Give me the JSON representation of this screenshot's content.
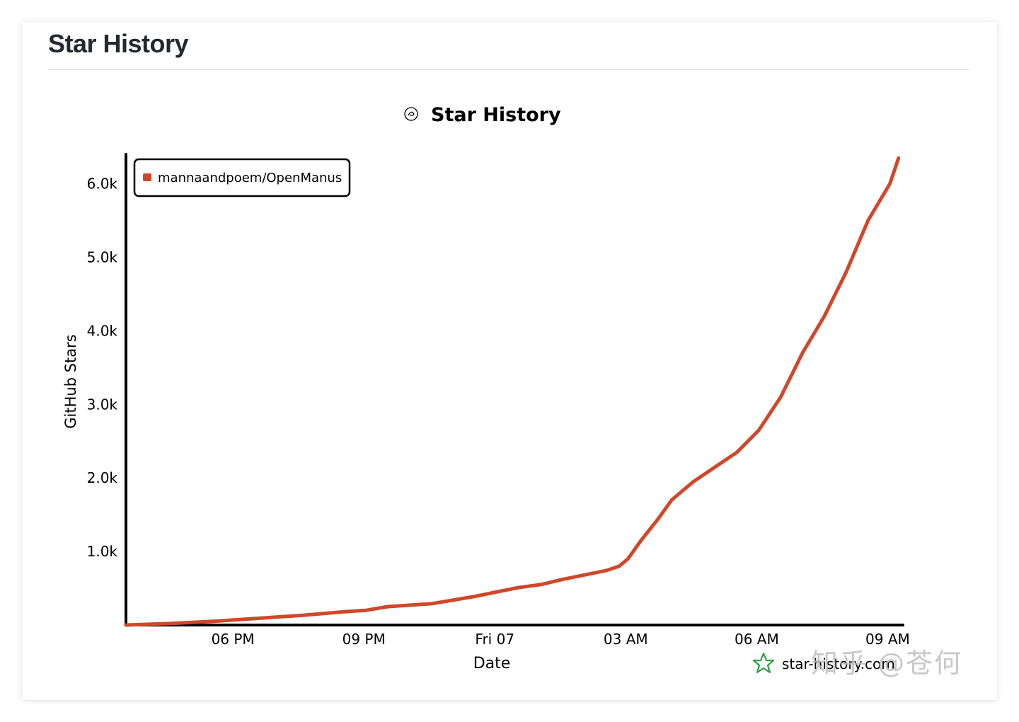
{
  "card": {
    "title": "Star History"
  },
  "colors": {
    "series": "#d0472a",
    "axis": "#000000",
    "brand_star": "#2ea043",
    "card_title": "#24292f"
  },
  "branding": {
    "icon": "star-history-logo-icon",
    "text": "star-history.com"
  },
  "watermark": {
    "text": "知乎 @苍何"
  },
  "chart_data": {
    "type": "line",
    "title": "Star History",
    "xlabel": "Date",
    "ylabel": "GitHub Stars",
    "x_unit": "hours since 06 Mar 3:34 PM (first tick 06 PM)",
    "xlim": [
      0,
      17.8
    ],
    "ylim": [
      0,
      6400
    ],
    "yticks": [
      {
        "value": 1000,
        "label": "1.0k"
      },
      {
        "value": 2000,
        "label": "2.0k"
      },
      {
        "value": 3000,
        "label": "3.0k"
      },
      {
        "value": 4000,
        "label": "4.0k"
      },
      {
        "value": 5000,
        "label": "5.0k"
      },
      {
        "value": 6000,
        "label": "6.0k"
      }
    ],
    "xticks": [
      {
        "value": 2.45,
        "label": "06 PM"
      },
      {
        "value": 5.45,
        "label": "09 PM"
      },
      {
        "value": 8.45,
        "label": "Fri 07"
      },
      {
        "value": 11.45,
        "label": "03 AM"
      },
      {
        "value": 14.45,
        "label": "06 AM"
      },
      {
        "value": 17.45,
        "label": "09 AM"
      }
    ],
    "legend": "top-left",
    "grid": false,
    "series": [
      {
        "name": "mannaandpoem/OpenManus",
        "points": [
          [
            0.0,
            0
          ],
          [
            1.0,
            20
          ],
          [
            2.0,
            50
          ],
          [
            3.0,
            90
          ],
          [
            4.0,
            130
          ],
          [
            5.0,
            180
          ],
          [
            5.5,
            200
          ],
          [
            6.0,
            250
          ],
          [
            7.0,
            290
          ],
          [
            8.0,
            390
          ],
          [
            8.5,
            450
          ],
          [
            9.0,
            510
          ],
          [
            9.5,
            550
          ],
          [
            10.0,
            620
          ],
          [
            10.5,
            680
          ],
          [
            11.0,
            740
          ],
          [
            11.3,
            800
          ],
          [
            11.5,
            900
          ],
          [
            11.8,
            1150
          ],
          [
            12.2,
            1450
          ],
          [
            12.5,
            1700
          ],
          [
            13.0,
            1950
          ],
          [
            13.5,
            2150
          ],
          [
            14.0,
            2350
          ],
          [
            14.5,
            2650
          ],
          [
            15.0,
            3100
          ],
          [
            15.5,
            3700
          ],
          [
            16.0,
            4200
          ],
          [
            16.5,
            4800
          ],
          [
            17.0,
            5500
          ],
          [
            17.5,
            6000
          ],
          [
            17.7,
            6350
          ]
        ]
      }
    ]
  }
}
